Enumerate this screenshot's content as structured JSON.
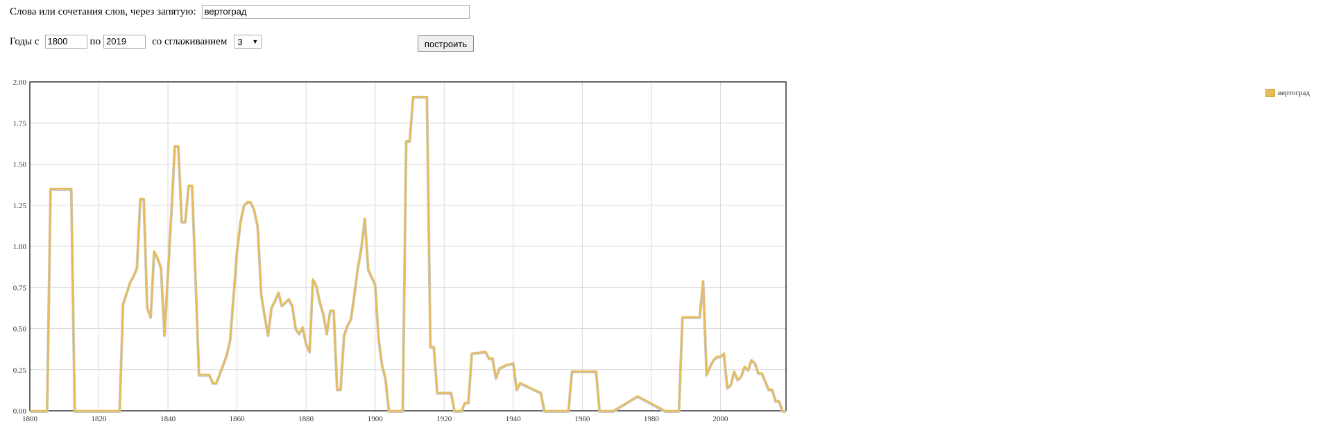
{
  "form": {
    "words_label": "Слова или сочетания слов, через запятую:",
    "words_value": "вертоград",
    "years_label": "Годы с",
    "year_from": "1800",
    "to_label": "по",
    "year_to": "2019",
    "smoothing_label": "со сглаживанием",
    "smoothing_value": "3",
    "build_button": "построить"
  },
  "chart_data": {
    "type": "line",
    "title": "",
    "xlabel": "",
    "ylabel": "",
    "xlim": [
      1800,
      2019
    ],
    "ylim": [
      0,
      2
    ],
    "grid": true,
    "legend_position": "right",
    "x_ticks": [
      1800,
      1820,
      1840,
      1860,
      1880,
      1900,
      1920,
      1940,
      1960,
      1980,
      2000
    ],
    "y_ticks": [
      "0.00",
      "0.25",
      "0.50",
      "0.75",
      "1.00",
      "1.25",
      "1.50",
      "1.75",
      "2.00"
    ],
    "series": [
      {
        "name": "вертоград",
        "color": "#e8bc57",
        "points": [
          [
            1800,
            0
          ],
          [
            1805,
            0
          ],
          [
            1806,
            1.35
          ],
          [
            1812,
            1.35
          ],
          [
            1813,
            0
          ],
          [
            1826,
            0
          ],
          [
            1827,
            0.65
          ],
          [
            1829,
            0.78
          ],
          [
            1830,
            0.82
          ],
          [
            1831,
            0.87
          ],
          [
            1832,
            1.29
          ],
          [
            1833,
            1.29
          ],
          [
            1834,
            0.63
          ],
          [
            1835,
            0.57
          ],
          [
            1836,
            0.97
          ],
          [
            1837,
            0.93
          ],
          [
            1838,
            0.87
          ],
          [
            1839,
            0.46
          ],
          [
            1841,
            1.21
          ],
          [
            1842,
            1.61
          ],
          [
            1843,
            1.61
          ],
          [
            1844,
            1.15
          ],
          [
            1845,
            1.15
          ],
          [
            1846,
            1.37
          ],
          [
            1847,
            1.37
          ],
          [
            1848,
            0.8
          ],
          [
            1849,
            0.22
          ],
          [
            1852,
            0.22
          ],
          [
            1853,
            0.17
          ],
          [
            1854,
            0.17
          ],
          [
            1856,
            0.28
          ],
          [
            1857,
            0.34
          ],
          [
            1858,
            0.43
          ],
          [
            1859,
            0.7
          ],
          [
            1860,
            0.97
          ],
          [
            1861,
            1.15
          ],
          [
            1862,
            1.25
          ],
          [
            1863,
            1.27
          ],
          [
            1864,
            1.27
          ],
          [
            1865,
            1.22
          ],
          [
            1866,
            1.12
          ],
          [
            1867,
            0.71
          ],
          [
            1868,
            0.58
          ],
          [
            1869,
            0.46
          ],
          [
            1870,
            0.63
          ],
          [
            1871,
            0.67
          ],
          [
            1872,
            0.72
          ],
          [
            1873,
            0.64
          ],
          [
            1874,
            0.66
          ],
          [
            1875,
            0.68
          ],
          [
            1876,
            0.64
          ],
          [
            1877,
            0.5
          ],
          [
            1878,
            0.47
          ],
          [
            1879,
            0.51
          ],
          [
            1880,
            0.41
          ],
          [
            1881,
            0.36
          ],
          [
            1882,
            0.8
          ],
          [
            1883,
            0.76
          ],
          [
            1884,
            0.66
          ],
          [
            1885,
            0.59
          ],
          [
            1886,
            0.47
          ],
          [
            1887,
            0.61
          ],
          [
            1888,
            0.61
          ],
          [
            1889,
            0.13
          ],
          [
            1890,
            0.13
          ],
          [
            1891,
            0.46
          ],
          [
            1892,
            0.52
          ],
          [
            1893,
            0.56
          ],
          [
            1894,
            0.71
          ],
          [
            1895,
            0.87
          ],
          [
            1896,
            0.99
          ],
          [
            1897,
            1.17
          ],
          [
            1898,
            0.86
          ],
          [
            1900,
            0.77
          ],
          [
            1901,
            0.44
          ],
          [
            1902,
            0.28
          ],
          [
            1903,
            0.2
          ],
          [
            1904,
            0
          ],
          [
            1908,
            0
          ],
          [
            1909,
            1.64
          ],
          [
            1910,
            1.64
          ],
          [
            1911,
            1.91
          ],
          [
            1915,
            1.91
          ],
          [
            1916,
            0.39
          ],
          [
            1917,
            0.39
          ],
          [
            1918,
            0.11
          ],
          [
            1922,
            0.11
          ],
          [
            1923,
            0
          ],
          [
            1925,
            0
          ],
          [
            1926,
            0.05
          ],
          [
            1927,
            0.05
          ],
          [
            1928,
            0.35
          ],
          [
            1932,
            0.36
          ],
          [
            1933,
            0.32
          ],
          [
            1934,
            0.32
          ],
          [
            1935,
            0.2
          ],
          [
            1936,
            0.26
          ],
          [
            1938,
            0.28
          ],
          [
            1940,
            0.29
          ],
          [
            1941,
            0.13
          ],
          [
            1942,
            0.17
          ],
          [
            1946,
            0.13
          ],
          [
            1948,
            0.11
          ],
          [
            1949,
            0
          ],
          [
            1956,
            0
          ],
          [
            1957,
            0.24
          ],
          [
            1964,
            0.24
          ],
          [
            1965,
            0
          ],
          [
            1969,
            0
          ],
          [
            1976,
            0.09
          ],
          [
            1984,
            0
          ],
          [
            1988,
            0
          ],
          [
            1989,
            0.57
          ],
          [
            1994,
            0.57
          ],
          [
            1995,
            0.79
          ],
          [
            1996,
            0.22
          ],
          [
            1997,
            0.27
          ],
          [
            1998,
            0.31
          ],
          [
            1999,
            0.33
          ],
          [
            2000,
            0.33
          ],
          [
            2001,
            0.35
          ],
          [
            2002,
            0.14
          ],
          [
            2003,
            0.16
          ],
          [
            2004,
            0.24
          ],
          [
            2005,
            0.19
          ],
          [
            2006,
            0.21
          ],
          [
            2007,
            0.27
          ],
          [
            2008,
            0.25
          ],
          [
            2009,
            0.31
          ],
          [
            2010,
            0.29
          ],
          [
            2011,
            0.23
          ],
          [
            2012,
            0.23
          ],
          [
            2014,
            0.13
          ],
          [
            2015,
            0.13
          ],
          [
            2016,
            0.06
          ],
          [
            2017,
            0.06
          ],
          [
            2018,
            0
          ],
          [
            2019,
            0
          ]
        ]
      }
    ]
  }
}
